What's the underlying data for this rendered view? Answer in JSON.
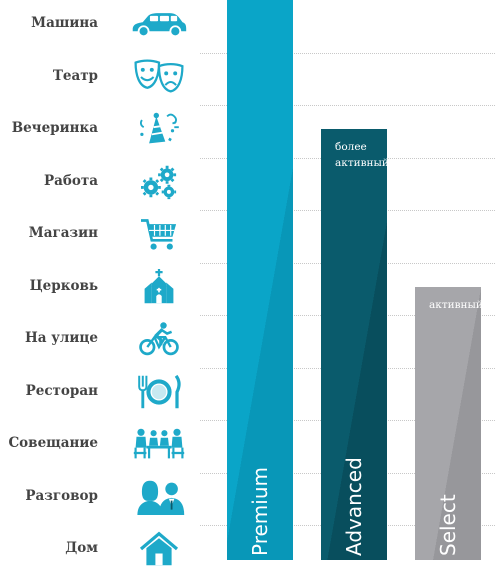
{
  "activities": [
    {
      "label": "Машина",
      "icon": "car-icon"
    },
    {
      "label": "Театр",
      "icon": "theater-masks-icon"
    },
    {
      "label": "Вечеринка",
      "icon": "party-icon"
    },
    {
      "label": "Работа",
      "icon": "gears-icon"
    },
    {
      "label": "Магазин",
      "icon": "shopping-cart-icon"
    },
    {
      "label": "Церковь",
      "icon": "church-icon"
    },
    {
      "label": "На улице",
      "icon": "cyclist-icon"
    },
    {
      "label": "Ресторан",
      "icon": "restaurant-icon"
    },
    {
      "label": "Совещание",
      "icon": "meeting-icon"
    },
    {
      "label": "Разговор",
      "icon": "conversation-icon"
    },
    {
      "label": "Дом",
      "icon": "house-icon"
    }
  ],
  "products": [
    {
      "name": "Premium",
      "tag": "",
      "coverage_rows": 11,
      "color": "#0aa5c8",
      "shade": "#0897b8"
    },
    {
      "name": "Advanced",
      "tag": "более активный",
      "coverage_rows": 8.5,
      "color": "#0a5b6c",
      "shade": "#084e5d"
    },
    {
      "name": "Select",
      "tag": "активный",
      "coverage_rows": 5.5,
      "color": "#a6a6aa",
      "shade": "#97979b"
    }
  ],
  "colors": {
    "icon": "#1ea9c9",
    "label": "#444444",
    "gridline": "#c8c8c8"
  }
}
